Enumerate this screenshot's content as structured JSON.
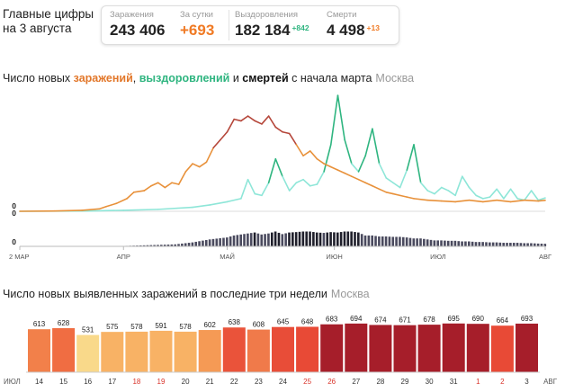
{
  "header": {
    "title": "Главные цифры на 3 августа",
    "stats": [
      {
        "label": "Заражения",
        "value": "243 406",
        "increment": ""
      },
      {
        "label": "За сутки",
        "value": "+693",
        "increment": ""
      },
      {
        "label": "Выздоровления",
        "value": "182 184",
        "increment": "+842"
      },
      {
        "label": "Смерти",
        "value": "4 498",
        "increment": "+13"
      }
    ]
  },
  "colors": {
    "infections": "#e8913a",
    "infections_peak": "#b5463a",
    "recoveries": "#8ee6d8",
    "recoveries_peak": "#2fb580",
    "deaths": "#4a4a5e",
    "deaths_peak": "#1f1f2b",
    "axis": "#999999"
  },
  "section1": {
    "title_parts": [
      "Число новых ",
      "заражений",
      ", ",
      "выздоровлений",
      " и ",
      "смертей",
      " с начала марта"
    ],
    "region": "Москва"
  },
  "section2": {
    "title": "Число новых выявленных заражений в последние три недели",
    "region": "Москва"
  },
  "chart_data": [
    {
      "type": "line",
      "title": "Число новых заражений, выздоровлений и смертей с начала марта",
      "x_labels": [
        "2 МАР",
        "АПР",
        "МАЙ",
        "ИЮН",
        "ИЮЛ",
        "АВГ"
      ],
      "x_label_days": [
        0,
        30,
        60,
        91,
        121,
        152
      ],
      "y_zero_label": "0",
      "ylim": [
        0,
        6800
      ],
      "series": [
        {
          "name": "заражений",
          "days": [
            0,
            10,
            18,
            23,
            25,
            28,
            31,
            33,
            36,
            38,
            40,
            42,
            44,
            46,
            48,
            50,
            52,
            54,
            56,
            58,
            60,
            62,
            64,
            66,
            68,
            70,
            72,
            74,
            76,
            78,
            80,
            82,
            84,
            86,
            88,
            90,
            92,
            94,
            96,
            98,
            100,
            102,
            104,
            106,
            108,
            110,
            112,
            114,
            118,
            122,
            126,
            130,
            134,
            138,
            142,
            146,
            150,
            152
          ],
          "values": [
            0,
            20,
            60,
            150,
            300,
            500,
            800,
            1200,
            1300,
            1600,
            1800,
            1500,
            1800,
            1700,
            2500,
            3000,
            2800,
            3100,
            4000,
            4500,
            5000,
            5800,
            5700,
            6000,
            5700,
            5500,
            6000,
            5300,
            5000,
            4900,
            4200,
            3500,
            3800,
            3300,
            3000,
            2800,
            2600,
            2400,
            2200,
            2000,
            1800,
            1600,
            1400,
            1200,
            1100,
            1000,
            900,
            800,
            700,
            650,
            600,
            700,
            600,
            700,
            600,
            700,
            650,
            690
          ]
        },
        {
          "name": "выздоровлений",
          "days": [
            0,
            20,
            30,
            40,
            50,
            55,
            60,
            64,
            66,
            68,
            70,
            72,
            74,
            76,
            78,
            80,
            82,
            84,
            86,
            88,
            90,
            92,
            94,
            96,
            98,
            100,
            102,
            104,
            106,
            108,
            110,
            112,
            114,
            116,
            118,
            120,
            122,
            124,
            126,
            128,
            130,
            132,
            134,
            136,
            138,
            140,
            142,
            144,
            146,
            148,
            150,
            152
          ],
          "values": [
            0,
            20,
            60,
            120,
            250,
            400,
            600,
            800,
            2000,
            1100,
            1000,
            1800,
            3300,
            2200,
            1300,
            1800,
            2000,
            1600,
            1700,
            2500,
            4200,
            7300,
            4500,
            3000,
            2500,
            3500,
            5200,
            3000,
            2100,
            1800,
            1500,
            2600,
            4200,
            1800,
            1300,
            1100,
            1500,
            1300,
            1000,
            2200,
            1500,
            1000,
            800,
            900,
            1400,
            800,
            1400,
            800,
            700,
            1300,
            700,
            840
          ]
        },
        {
          "name": "смертей",
          "days": [
            0,
            30,
            45,
            50,
            55,
            60,
            62,
            64,
            66,
            68,
            70,
            72,
            74,
            76,
            78,
            80,
            82,
            84,
            86,
            88,
            90,
            92,
            94,
            96,
            98,
            100,
            102,
            104,
            106,
            108,
            110,
            112,
            114,
            116,
            118,
            120,
            122,
            124,
            126,
            128,
            130,
            132,
            134,
            136,
            138,
            140,
            142,
            144,
            146,
            148,
            150,
            152
          ],
          "values": [
            0,
            2,
            10,
            20,
            35,
            45,
            55,
            60,
            65,
            70,
            60,
            65,
            75,
            62,
            70,
            72,
            75,
            75,
            70,
            68,
            72,
            70,
            75,
            75,
            70,
            55,
            55,
            50,
            50,
            48,
            48,
            45,
            40,
            40,
            35,
            30,
            30,
            28,
            28,
            25,
            25,
            22,
            22,
            20,
            20,
            18,
            18,
            18,
            16,
            16,
            14,
            13
          ]
        }
      ]
    },
    {
      "type": "bar",
      "title": "Число новых выявленных заражений в последние три недели",
      "month_label_start": "ИЮЛ",
      "month_label_end": "АВГ",
      "categories": [
        "14",
        "15",
        "16",
        "17",
        "18",
        "19",
        "20",
        "21",
        "22",
        "23",
        "24",
        "25",
        "26",
        "27",
        "28",
        "29",
        "30",
        "31",
        "1",
        "2",
        "3"
      ],
      "weekend_categories": [
        "18",
        "19",
        "25",
        "26",
        "1",
        "2"
      ],
      "values": [
        613,
        628,
        531,
        575,
        578,
        591,
        578,
        602,
        638,
        608,
        645,
        648,
        683,
        694,
        674,
        671,
        678,
        695,
        690,
        664,
        693
      ],
      "colors": [
        "#f2804a",
        "#f06d42",
        "#f9d98a",
        "#f8b265",
        "#f8b265",
        "#f8b265",
        "#f8b265",
        "#f59a55",
        "#ea533a",
        "#f07a4a",
        "#e84d38",
        "#e84a36",
        "#a61e2a",
        "#a61e2a",
        "#a61e2a",
        "#a61e2a",
        "#a61e2a",
        "#a61e2a",
        "#a61e2a",
        "#e84a36",
        "#a61e2a"
      ]
    }
  ]
}
